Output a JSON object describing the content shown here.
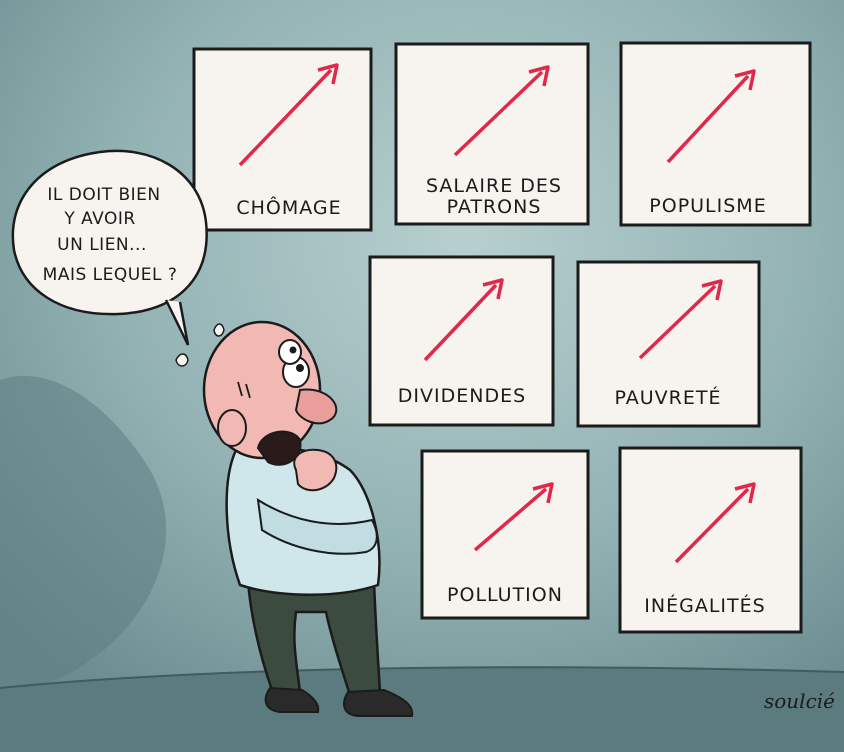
{
  "colors": {
    "wall_light": "#a9c3c4",
    "wall_dark": "#6f9093",
    "floor": "#5f7f82",
    "poster_bg": "#f7f3ee",
    "arrow": "#e0294a",
    "shirt": "#cfe6ea",
    "trousers": "#3c4b3f",
    "skin": "#f2b8b3",
    "outline": "#1b1b1b"
  },
  "posters": [
    {
      "label": "CHÔMAGE"
    },
    {
      "label_line1": "SALAIRE DES",
      "label_line2": "PATRONS"
    },
    {
      "label": "POPULISME"
    },
    {
      "label": "DIVIDENDES"
    },
    {
      "label": "PAUVRETÉ"
    },
    {
      "label": "POLLUTION"
    },
    {
      "label": "INÉGALITÉS"
    }
  ],
  "speech_bubble": {
    "line1": "IL DOIT BIEN",
    "line2": "Y AVOIR",
    "line3": "UN LIEN...",
    "line4": "MAIS LEQUEL ?"
  },
  "signature": "soulcié"
}
